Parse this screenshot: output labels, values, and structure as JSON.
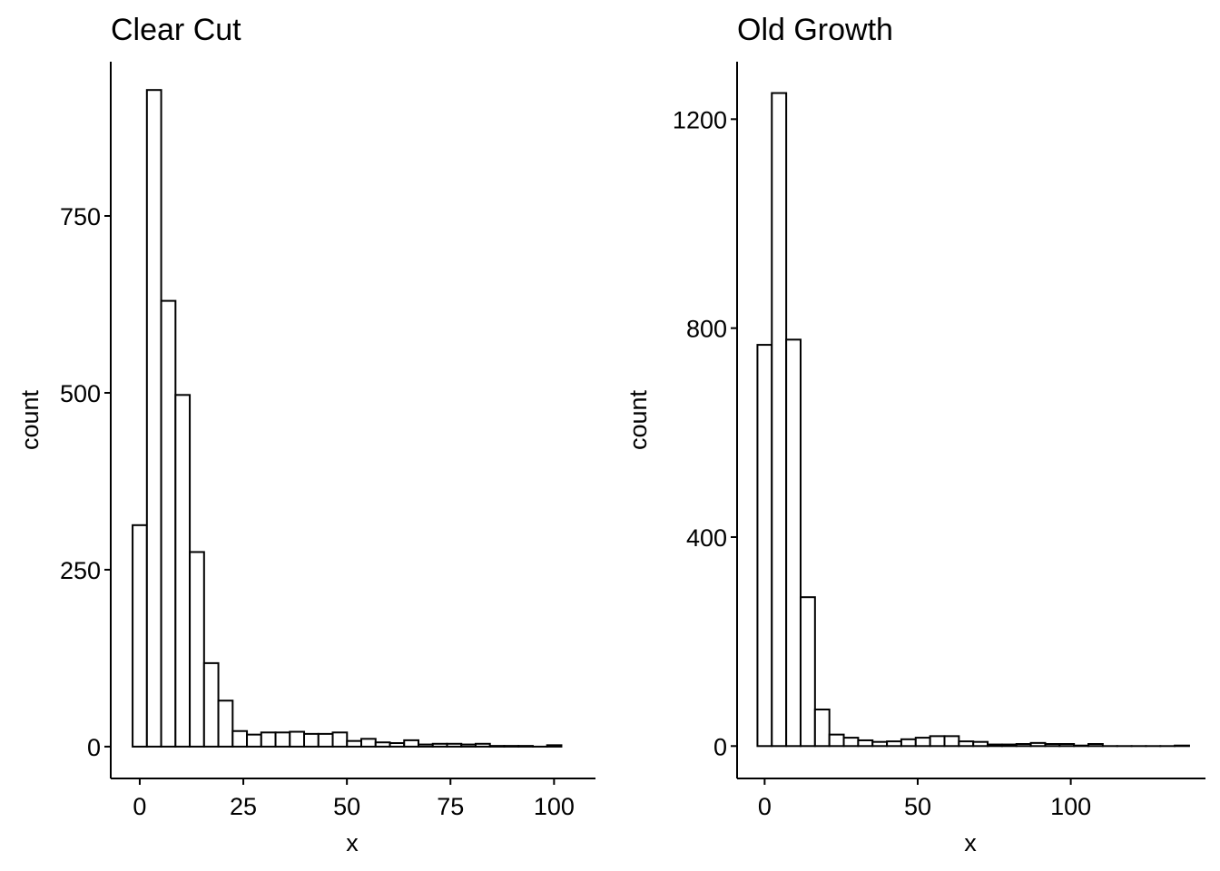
{
  "chart_data": [
    {
      "type": "bar",
      "title": "Clear Cut",
      "xlabel": "x",
      "ylabel": "count",
      "xlim": [
        -7,
        110
      ],
      "ylim": [
        -45,
        968
      ],
      "x_ticks": [
        0,
        25,
        50,
        75,
        100
      ],
      "x_tick_labels": [
        "0",
        "25",
        "50",
        "75",
        "100"
      ],
      "y_ticks": [
        0,
        250,
        500,
        750
      ],
      "y_tick_labels": [
        "0",
        "250",
        "500",
        "750"
      ],
      "bin_width": 3.45,
      "bin_centers": [
        0.0,
        3.45,
        6.9,
        10.35,
        13.8,
        17.25,
        20.7,
        24.15,
        27.6,
        31.05,
        34.5,
        37.95,
        41.4,
        44.85,
        48.3,
        51.75,
        55.2,
        58.65,
        62.1,
        65.55,
        69.0,
        72.45,
        75.9,
        79.35,
        82.8,
        86.25,
        89.7,
        93.15,
        96.6,
        100.05
      ],
      "values": [
        313,
        928,
        630,
        497,
        275,
        118,
        65,
        22,
        17,
        20,
        20,
        21,
        18,
        18,
        20,
        8,
        11,
        6,
        5,
        9,
        3,
        4,
        4,
        3,
        4,
        1,
        1,
        1,
        0,
        2
      ]
    },
    {
      "type": "bar",
      "title": "Old Growth",
      "xlabel": "x",
      "ylabel": "count",
      "xlim": [
        -9,
        144
      ],
      "ylim": [
        -62,
        1310
      ],
      "x_ticks": [
        0,
        50,
        100
      ],
      "x_tick_labels": [
        "0",
        "50",
        "100"
      ],
      "y_ticks": [
        0,
        400,
        800,
        1200
      ],
      "y_tick_labels": [
        "0",
        "400",
        "800",
        "1200"
      ],
      "bin_width": 4.7,
      "bin_centers": [
        0.0,
        4.7,
        9.4,
        14.1,
        18.8,
        23.5,
        28.2,
        32.9,
        37.6,
        42.3,
        47.0,
        51.7,
        56.4,
        61.1,
        65.8,
        70.5,
        75.2,
        79.9,
        84.6,
        89.3,
        94.0,
        98.7,
        103.4,
        108.1,
        112.8,
        117.5,
        122.2,
        126.9,
        131.6,
        136.3
      ],
      "values": [
        768,
        1250,
        778,
        285,
        70,
        22,
        16,
        11,
        8,
        9,
        13,
        16,
        19,
        19,
        9,
        8,
        3,
        3,
        4,
        6,
        4,
        4,
        1,
        4,
        0,
        0,
        0,
        0,
        0,
        1
      ]
    }
  ]
}
